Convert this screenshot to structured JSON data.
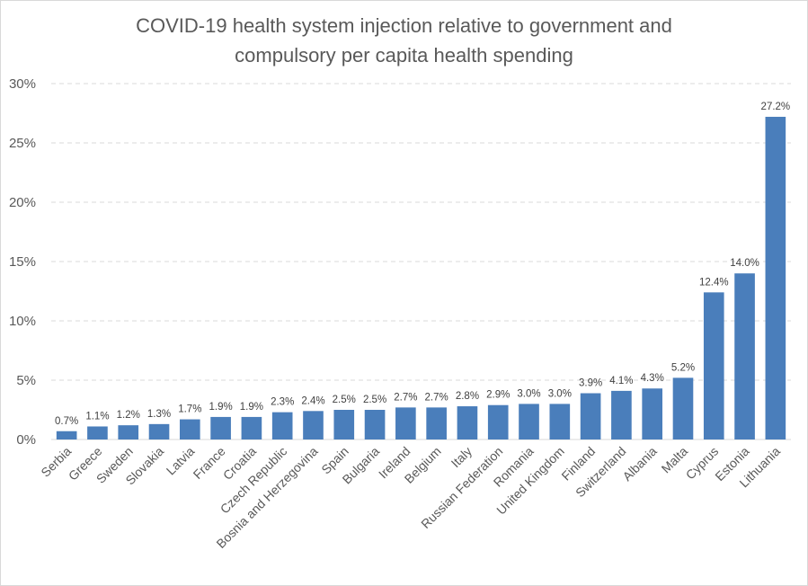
{
  "chart_data": {
    "type": "bar",
    "title": "COVID-19 health system injection relative to government and compulsory per capita health spending",
    "title_lines": [
      "COVID-19 health system injection relative to government and",
      "compulsory per capita health spending"
    ],
    "xlabel": "",
    "ylabel": "",
    "ylim": [
      0,
      30
    ],
    "yticks": [
      0,
      5,
      10,
      15,
      20,
      25,
      30
    ],
    "ytick_labels": [
      "0%",
      "5%",
      "10%",
      "15%",
      "20%",
      "25%",
      "30%"
    ],
    "grid": true,
    "legend": "none",
    "bar_color": "#4a7ebb",
    "categories": [
      "Serbia",
      "Greece",
      "Sweden",
      "Slovakia",
      "Latvia",
      "France",
      "Croatia",
      "Czech Republic",
      "Bosnia and Herzegovina",
      "Spain",
      "Bulgaria",
      "Ireland",
      "Belgium",
      "Italy",
      "Russian Federation",
      "Romania",
      "United Kingdom",
      "Finland",
      "Switzerland",
      "Albania",
      "Malta",
      "Cyprus",
      "Estonia",
      "Lithuania"
    ],
    "values": [
      0.7,
      1.1,
      1.2,
      1.3,
      1.7,
      1.9,
      1.9,
      2.3,
      2.4,
      2.5,
      2.5,
      2.7,
      2.7,
      2.8,
      2.9,
      3.0,
      3.0,
      3.9,
      4.1,
      4.3,
      5.2,
      12.4,
      14.0,
      27.2
    ],
    "data_labels": [
      "0.7%",
      "1.1%",
      "1.2%",
      "1.3%",
      "1.7%",
      "1.9%",
      "1.9%",
      "2.3%",
      "2.4%",
      "2.5%",
      "2.5%",
      "2.7%",
      "2.7%",
      "2.8%",
      "2.9%",
      "3.0%",
      "3.0%",
      "3.9%",
      "4.1%",
      "4.3%",
      "5.2%",
      "12.4%",
      "14.0%",
      "27.2%"
    ]
  }
}
